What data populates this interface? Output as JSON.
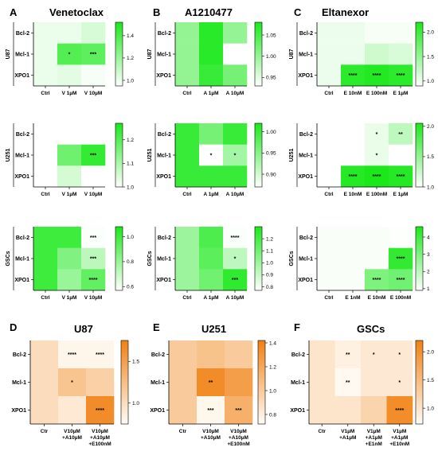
{
  "panel_titles": {
    "A": {
      "letter": "A",
      "title": "Venetoclax"
    },
    "B": {
      "letter": "B",
      "title": "A1210477"
    },
    "C": {
      "letter": "C",
      "title": "Eltanexor"
    },
    "D": {
      "letter": "D",
      "title": "U87"
    },
    "E": {
      "letter": "E",
      "title": "U251"
    },
    "F": {
      "letter": "F",
      "title": "GSCs"
    }
  },
  "chart_data": [
    {
      "id": "A-U87",
      "type": "heatmap",
      "side_label": "U87",
      "palette": "green",
      "rows": [
        "Bcl-2",
        "Mcl-1",
        "XPO1"
      ],
      "cols": [
        "Ctrl",
        "V 1µM",
        "V 10µM"
      ],
      "values": [
        [
          1.0,
          1.0,
          1.05
        ],
        [
          1.0,
          1.38,
          1.35
        ],
        [
          1.0,
          1.02,
          0.97
        ]
      ],
      "stars": [
        [
          "",
          "",
          ""
        ],
        [
          "",
          "*",
          "***"
        ],
        [
          "",
          "",
          ""
        ]
      ],
      "colorbar": {
        "min": 0.95,
        "max": 1.52,
        "ticks": [
          "1.0",
          "1.2",
          "1.4"
        ],
        "tick_values": [
          1.0,
          1.2,
          1.4
        ]
      }
    },
    {
      "id": "B-U87",
      "type": "heatmap",
      "side_label": "U87",
      "palette": "green",
      "rows": [
        "Bcl-2",
        "Mcl-1",
        "XPO1"
      ],
      "cols": [
        "Ctrl",
        "A 1µM",
        "A 10µM"
      ],
      "values": [
        [
          1.0,
          1.07,
          1.0
        ],
        [
          1.0,
          1.07,
          0.93
        ],
        [
          1.0,
          1.06,
          1.02
        ]
      ],
      "stars": [
        [
          "",
          "",
          ""
        ],
        [
          "",
          "",
          ""
        ],
        [
          "",
          "",
          ""
        ]
      ],
      "colorbar": {
        "min": 0.93,
        "max": 1.08,
        "ticks": [
          "0.95",
          "1.00",
          "1.05"
        ],
        "tick_values": [
          0.95,
          1.0,
          1.05
        ]
      }
    },
    {
      "id": "C-U87",
      "type": "heatmap",
      "side_label": "U87",
      "palette": "green",
      "rows": [
        "Bcl-2",
        "Mcl-1",
        "XPO1"
      ],
      "cols": [
        "Ctrl",
        "E 10nM",
        "E 100nM",
        "E 1µM"
      ],
      "values": [
        [
          1.0,
          1.0,
          0.95,
          0.95
        ],
        [
          1.0,
          1.0,
          1.18,
          1.12
        ],
        [
          1.0,
          2.1,
          2.15,
          2.1
        ]
      ],
      "stars": [
        [
          "",
          "",
          "",
          ""
        ],
        [
          "",
          "",
          "",
          ""
        ],
        [
          "",
          "****",
          "****",
          "****"
        ]
      ],
      "colorbar": {
        "min": 0.9,
        "max": 2.2,
        "ticks": [
          "1.0",
          "1.5",
          "2.0"
        ],
        "tick_values": [
          1.0,
          1.5,
          2.0
        ]
      }
    },
    {
      "id": "A-U251",
      "type": "heatmap",
      "side_label": "U251",
      "palette": "green",
      "rows": [
        "Bcl-2",
        "Mcl-1",
        "XPO1"
      ],
      "cols": [
        "Ctrl",
        "V 1µM",
        "V 10µM"
      ],
      "values": [
        [
          1.0,
          1.0,
          1.0
        ],
        [
          1.0,
          1.17,
          1.24
        ],
        [
          1.0,
          1.05,
          1.0
        ]
      ],
      "stars": [
        [
          "",
          "",
          ""
        ],
        [
          "",
          "",
          "***"
        ],
        [
          "",
          "",
          ""
        ]
      ],
      "colorbar": {
        "min": 1.0,
        "max": 1.27,
        "ticks": [
          "1.0",
          "1.1",
          "1.2"
        ],
        "tick_values": [
          1.0,
          1.1,
          1.2
        ]
      }
    },
    {
      "id": "B-U251",
      "type": "heatmap",
      "side_label": "U251",
      "palette": "green",
      "rows": [
        "Bcl-2",
        "Mcl-1",
        "XPO1"
      ],
      "cols": [
        "Ctrl",
        "A 1µM",
        "A 10µM"
      ],
      "values": [
        [
          1.0,
          0.96,
          1.0
        ],
        [
          1.0,
          0.87,
          0.93
        ],
        [
          1.0,
          1.0,
          1.0
        ]
      ],
      "stars": [
        [
          "",
          "",
          ""
        ],
        [
          "",
          "*",
          "*"
        ],
        [
          "",
          "",
          ""
        ]
      ],
      "colorbar": {
        "min": 0.87,
        "max": 1.02,
        "ticks": [
          "0.90",
          "0.95",
          "1.00"
        ],
        "tick_values": [
          0.9,
          0.95,
          1.0
        ]
      }
    },
    {
      "id": "C-U251",
      "type": "heatmap",
      "side_label": "U251",
      "palette": "green",
      "rows": [
        "Bcl-2",
        "Mcl-1",
        "XPO1"
      ],
      "cols": [
        "Ctrl",
        "E 10nM",
        "E 100nM",
        "E 1µM"
      ],
      "values": [
        [
          1.0,
          1.0,
          1.1,
          1.3
        ],
        [
          1.0,
          1.0,
          1.1,
          1.0
        ],
        [
          1.0,
          2.0,
          2.05,
          2.0
        ]
      ],
      "stars": [
        [
          "",
          "",
          "*",
          "**"
        ],
        [
          "",
          "",
          "*",
          ""
        ],
        [
          "",
          "****",
          "****",
          "****"
        ]
      ],
      "colorbar": {
        "min": 1.0,
        "max": 2.05,
        "ticks": [
          "1.0",
          "1.5",
          "2.0"
        ],
        "tick_values": [
          1.0,
          1.5,
          2.0
        ]
      }
    },
    {
      "id": "A-GSCs",
      "type": "heatmap",
      "side_label": "GSCs",
      "palette": "green",
      "rows": [
        "Bcl-2",
        "Mcl-1",
        "XPO1"
      ],
      "cols": [
        "Ctrl",
        "V 1µM",
        "V 10µM"
      ],
      "values": [
        [
          1.0,
          1.0,
          0.58
        ],
        [
          1.0,
          0.85,
          0.72
        ],
        [
          1.0,
          0.8,
          0.92
        ]
      ],
      "stars": [
        [
          "",
          "",
          "***"
        ],
        [
          "",
          "",
          "***"
        ],
        [
          "",
          "",
          "****"
        ]
      ],
      "colorbar": {
        "min": 0.57,
        "max": 1.08,
        "ticks": [
          "0.6",
          "0.8",
          "1.0"
        ],
        "tick_values": [
          0.6,
          0.8,
          1.0
        ]
      }
    },
    {
      "id": "B-GSCs",
      "type": "heatmap",
      "side_label": "GSCs",
      "palette": "green",
      "rows": [
        "Bcl-2",
        "Mcl-1",
        "XPO1"
      ],
      "cols": [
        "Ctrl",
        "A 1µM",
        "A 10µM"
      ],
      "values": [
        [
          1.0,
          1.18,
          0.78
        ],
        [
          1.0,
          1.15,
          0.92
        ],
        [
          1.0,
          1.1,
          1.25
        ]
      ],
      "stars": [
        [
          "",
          "",
          "****"
        ],
        [
          "",
          "",
          "*"
        ],
        [
          "",
          "",
          "***"
        ]
      ],
      "colorbar": {
        "min": 0.77,
        "max": 1.3,
        "ticks": [
          "0.8",
          "0.9",
          "1.0",
          "1.1",
          "1.2"
        ],
        "tick_values": [
          0.8,
          0.9,
          1.0,
          1.1,
          1.2
        ]
      }
    },
    {
      "id": "C-GSCs",
      "type": "heatmap",
      "side_label": "GSCs",
      "palette": "green",
      "rows": [
        "Bcl-2",
        "Mcl-1",
        "XPO1"
      ],
      "cols": [
        "Ctrl",
        "E 1nM",
        "E 10nM",
        "E 100nM"
      ],
      "values": [
        [
          1.0,
          1.0,
          1.0,
          0.95
        ],
        [
          1.0,
          1.0,
          1.0,
          4.2
        ],
        [
          1.0,
          1.0,
          3.0,
          3.2
        ]
      ],
      "stars": [
        [
          "",
          "",
          "",
          ""
        ],
        [
          "",
          "",
          "",
          "****"
        ],
        [
          "",
          "",
          "****",
          "****"
        ]
      ],
      "colorbar": {
        "min": 0.9,
        "max": 4.6,
        "ticks": [
          "1",
          "2",
          "3",
          "4"
        ],
        "tick_values": [
          1,
          2,
          3,
          4
        ]
      }
    },
    {
      "id": "D",
      "type": "heatmap",
      "side_label": "",
      "palette": "orange",
      "rows": [
        "Bcl-2",
        "Mcl-1",
        "XPO1"
      ],
      "cols": [
        "Ctr",
        "V10µM\n+A10µM",
        "V10µM\n+A10µM\n+E100nM"
      ],
      "values": [
        [
          1.0,
          0.8,
          0.8
        ],
        [
          1.0,
          1.2,
          1.1
        ],
        [
          1.0,
          0.9,
          1.65
        ]
      ],
      "stars": [
        [
          "",
          "****",
          "****"
        ],
        [
          "",
          "*",
          ""
        ],
        [
          "",
          "",
          "****"
        ]
      ],
      "colorbar": {
        "min": 0.75,
        "max": 1.75,
        "ticks": [
          "1.0",
          "1.5"
        ],
        "tick_values": [
          1.0,
          1.5
        ]
      }
    },
    {
      "id": "E",
      "type": "heatmap",
      "side_label": "",
      "palette": "orange",
      "rows": [
        "Bcl-2",
        "Mcl-1",
        "XPO1"
      ],
      "cols": [
        "Ctr",
        "V10µM\n+A10µM",
        "V10µM\n+A10µM\n+E100nM"
      ],
      "values": [
        [
          1.0,
          1.05,
          1.0
        ],
        [
          1.0,
          1.35,
          1.25
        ],
        [
          1.0,
          0.75,
          1.15
        ]
      ],
      "stars": [
        [
          "",
          "",
          ""
        ],
        [
          "",
          "**",
          ""
        ],
        [
          "",
          "***",
          "***"
        ]
      ],
      "colorbar": {
        "min": 0.72,
        "max": 1.42,
        "ticks": [
          "0.8",
          "1.0",
          "1.2",
          "1.4"
        ],
        "tick_values": [
          0.8,
          1.0,
          1.2,
          1.4
        ]
      }
    },
    {
      "id": "F",
      "type": "heatmap",
      "side_label": "",
      "palette": "orange",
      "rows": [
        "Bcl-2",
        "Mcl-1",
        "XPO1"
      ],
      "cols": [
        "Ctr",
        "V1µM\n+A1µM",
        "V1µM\n+A1µM\n+E1nM",
        "V1µM\n+A1µM\n+E10nM"
      ],
      "values": [
        [
          1.0,
          0.85,
          0.95,
          0.95
        ],
        [
          1.0,
          0.75,
          0.95,
          0.95
        ],
        [
          1.0,
          1.0,
          1.2,
          2.05
        ]
      ],
      "stars": [
        [
          "",
          "**",
          "*",
          "*"
        ],
        [
          "",
          "**",
          "",
          "*"
        ],
        [
          "",
          "",
          "",
          "****"
        ]
      ],
      "colorbar": {
        "min": 0.72,
        "max": 2.2,
        "ticks": [
          "1.0",
          "1.5",
          "2.0"
        ],
        "tick_values": [
          1.0,
          1.5,
          2.0
        ]
      }
    }
  ]
}
